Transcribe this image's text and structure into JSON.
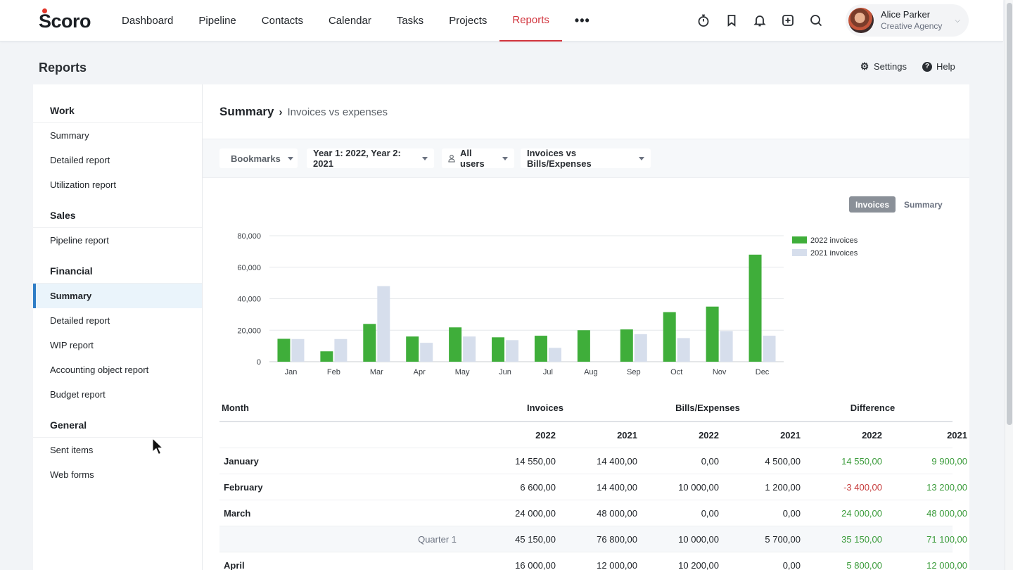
{
  "app": {
    "logo_rest": "coro",
    "logo_initial": "S"
  },
  "nav": {
    "items": [
      {
        "label": "Dashboard"
      },
      {
        "label": "Pipeline"
      },
      {
        "label": "Contacts"
      },
      {
        "label": "Calendar"
      },
      {
        "label": "Tasks"
      },
      {
        "label": "Projects"
      },
      {
        "label": "Reports",
        "active": true
      }
    ],
    "more": "•••"
  },
  "user": {
    "name": "Alice Parker",
    "org": "Creative Agency"
  },
  "page": {
    "title": "Reports",
    "settings": "Settings",
    "help": "Help"
  },
  "sidebar": {
    "groups": [
      {
        "title": "Work",
        "items": [
          "Summary",
          "Detailed report",
          "Utilization report"
        ]
      },
      {
        "title": "Sales",
        "items": [
          "Pipeline report"
        ]
      },
      {
        "title": "Financial",
        "items": [
          "Summary",
          "Detailed report",
          "WIP report",
          "Accounting object report",
          "Budget report"
        ]
      },
      {
        "title": "General",
        "items": [
          "Sent items",
          "Web forms"
        ]
      }
    ]
  },
  "breadcrumb": {
    "main": "Summary",
    "sep": "›",
    "sub": "Invoices vs expenses"
  },
  "filters": {
    "bookmarks": "Bookmarks",
    "years": "Year 1: 2022, Year 2: 2021",
    "users": "All users",
    "compare": "Invoices vs Bills/Expenses"
  },
  "toggles": {
    "invoices": "Invoices",
    "summary": "Summary"
  },
  "colors": {
    "series_2022": "#3fae3a",
    "series_2021": "#d6deec",
    "accent": "#d1343d"
  },
  "chart_data": {
    "type": "bar",
    "categories": [
      "Jan",
      "Feb",
      "Mar",
      "Apr",
      "May",
      "Jun",
      "Jul",
      "Aug",
      "Sep",
      "Oct",
      "Nov",
      "Dec"
    ],
    "series": [
      {
        "name": "2022 invoices",
        "values": [
          14550,
          6600,
          24000,
          16000,
          21800,
          15500,
          16500,
          20000,
          20500,
          31500,
          35000,
          68000
        ]
      },
      {
        "name": "2021 invoices",
        "values": [
          14400,
          14400,
          48000,
          12000,
          16000,
          13700,
          8800,
          0,
          17500,
          15000,
          19500,
          16500
        ]
      }
    ],
    "yticks": [
      0,
      20000,
      40000,
      60000,
      80000
    ],
    "ytick_labels": [
      "0",
      "20,000",
      "40,000",
      "60,000",
      "80,000"
    ],
    "ylim": [
      0,
      80000
    ],
    "legend": "top-right",
    "grid": true
  },
  "table": {
    "headers": {
      "month": "Month",
      "invoices": "Invoices",
      "bills": "Bills/Expenses",
      "difference": "Difference"
    },
    "year_headers": [
      "2022",
      "2021",
      "2022",
      "2021",
      "2022",
      "2021"
    ],
    "rows": [
      {
        "label": "January",
        "values": [
          "14 550,00",
          "14 400,00",
          "0,00",
          "4 500,00",
          "14 550,00",
          "9 900,00"
        ],
        "signs": [
          "pos",
          "pos"
        ]
      },
      {
        "label": "February",
        "values": [
          "6 600,00",
          "14 400,00",
          "10 000,00",
          "1 200,00",
          "-3 400,00",
          "13 200,00"
        ],
        "signs": [
          "neg",
          "pos"
        ]
      },
      {
        "label": "March",
        "values": [
          "24 000,00",
          "48 000,00",
          "0,00",
          "0,00",
          "24 000,00",
          "48 000,00"
        ],
        "signs": [
          "pos",
          "pos"
        ]
      },
      {
        "label": "Quarter 1",
        "quarter": true,
        "values": [
          "45 150,00",
          "76 800,00",
          "10 000,00",
          "5 700,00",
          "35 150,00",
          "71 100,00"
        ],
        "signs": [
          "pos",
          "pos"
        ]
      },
      {
        "label": "April",
        "values": [
          "16 000,00",
          "12 000,00",
          "10 200,00",
          "0,00",
          "5 800,00",
          "12 000,00"
        ],
        "signs": [
          "pos",
          "pos"
        ]
      }
    ]
  }
}
